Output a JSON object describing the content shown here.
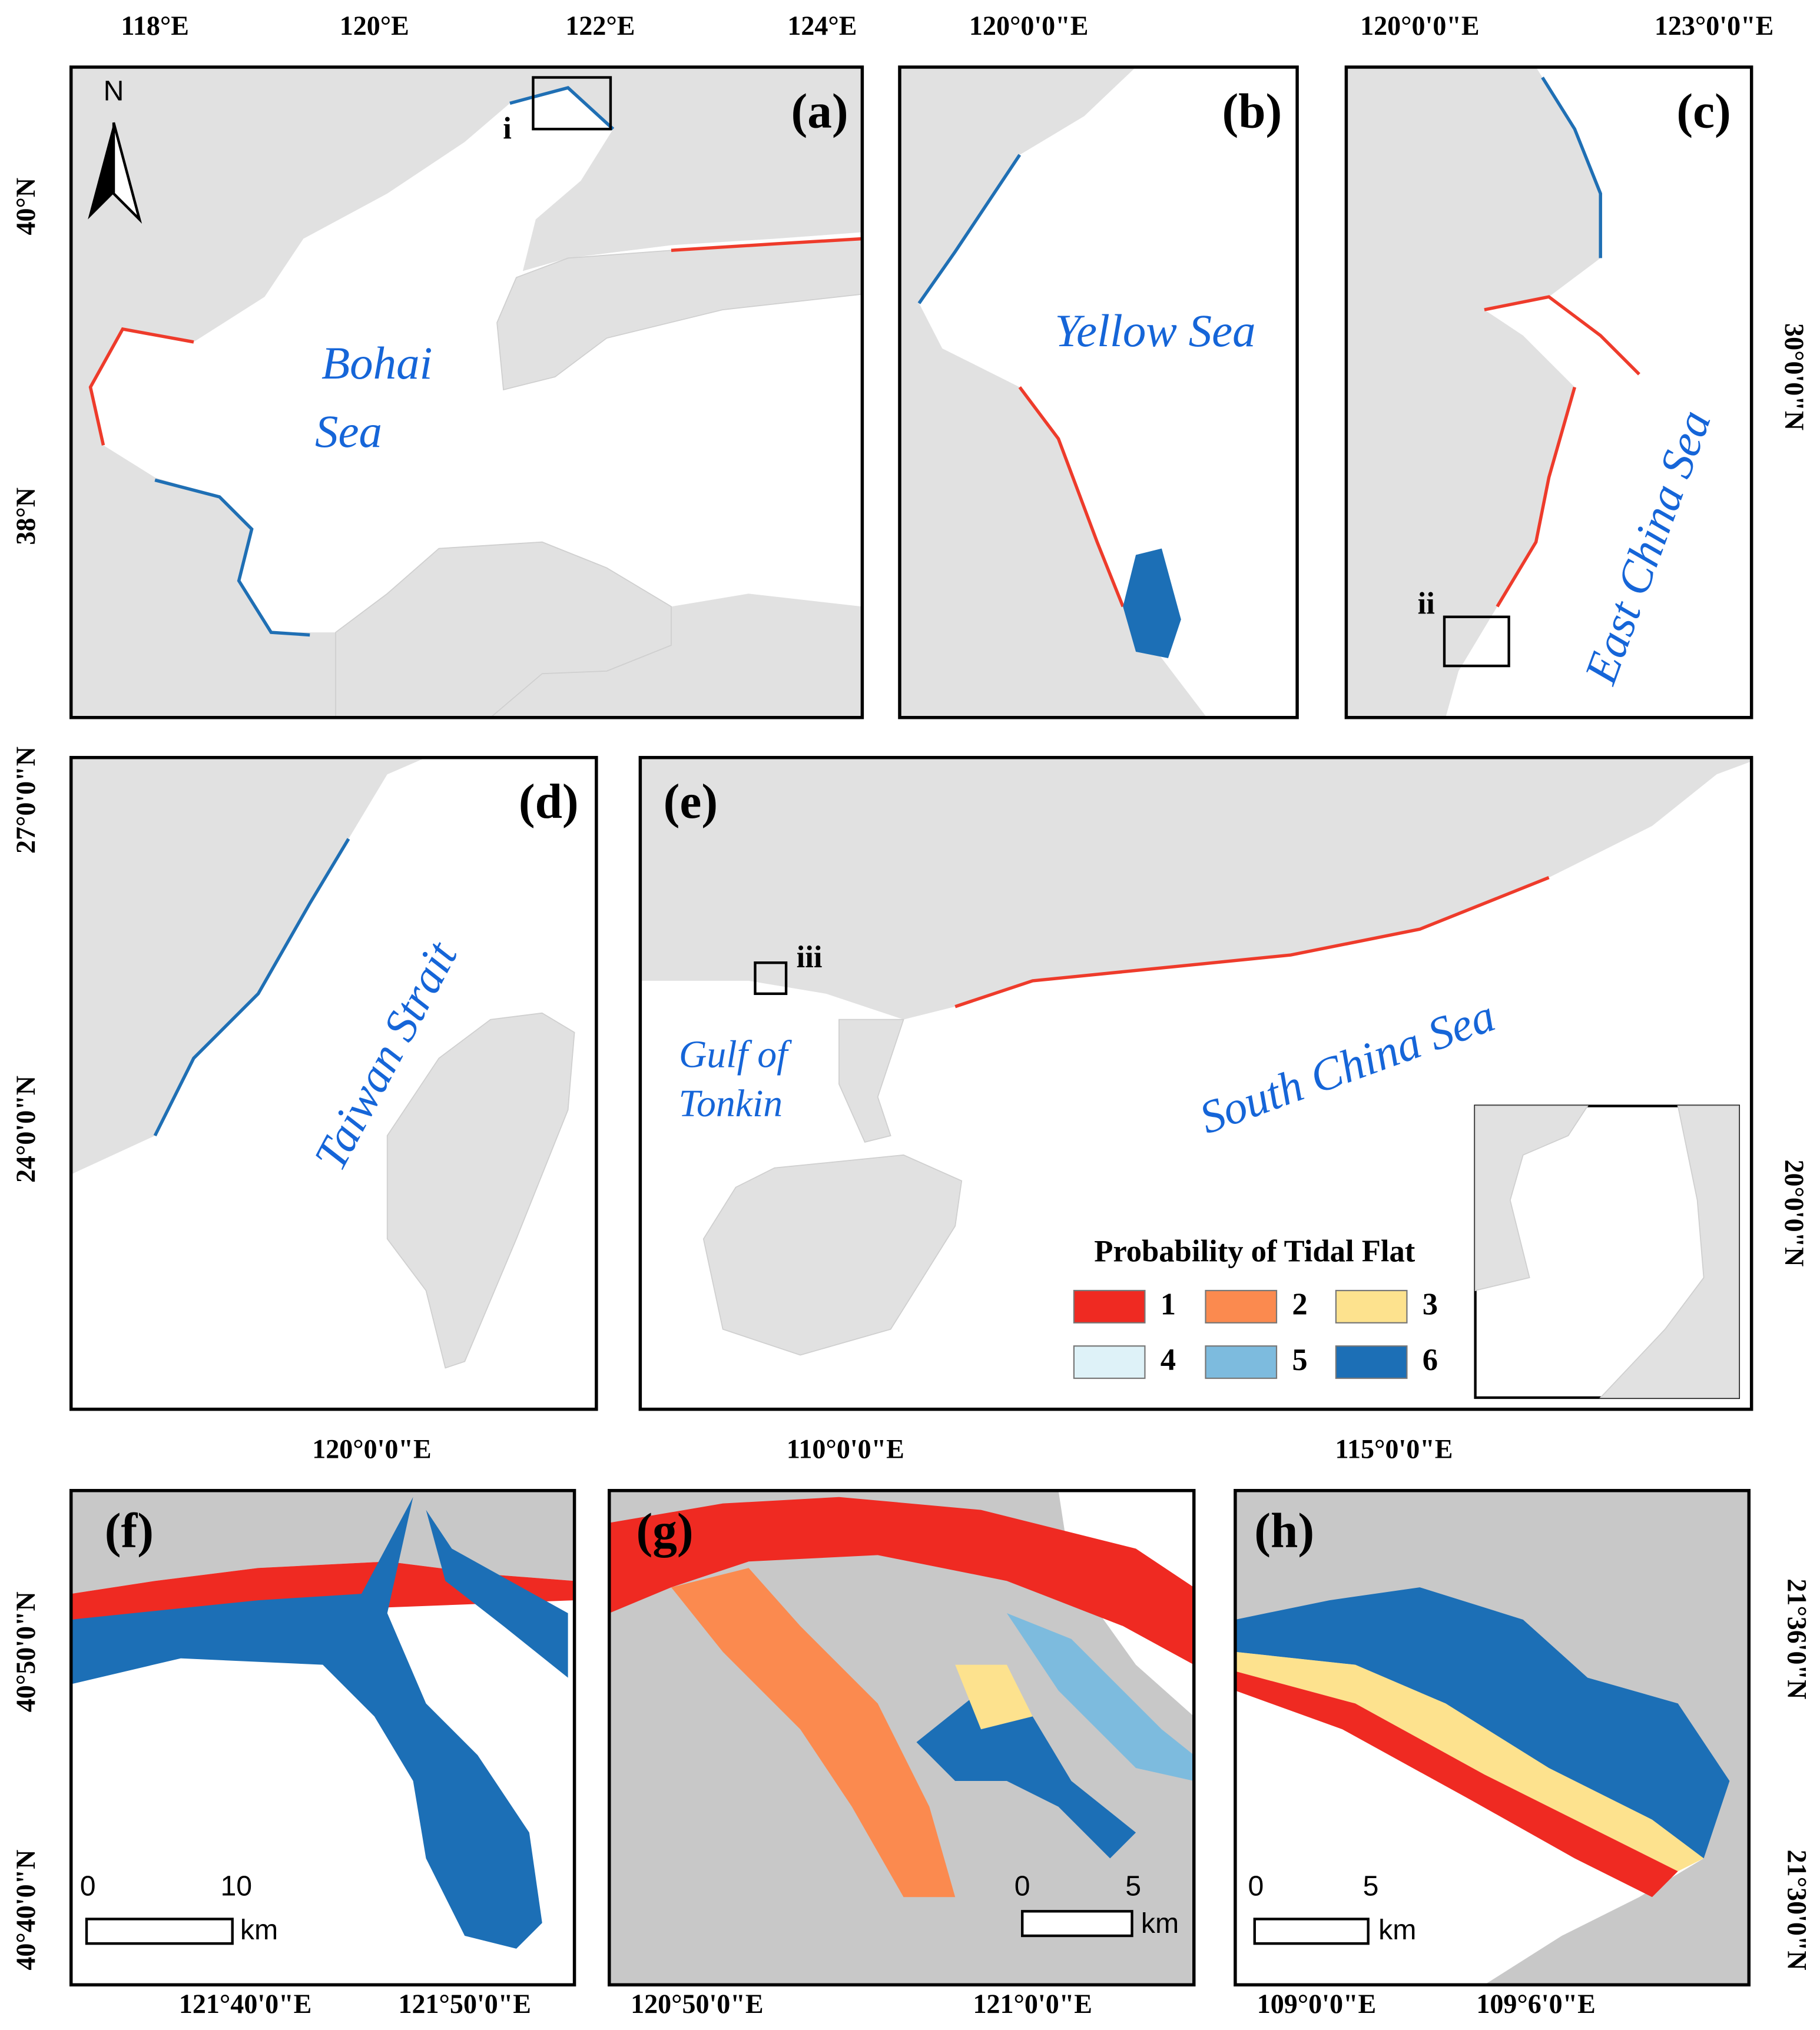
{
  "panels": [
    {
      "label": "(a)",
      "x_ticks": [
        "118°E",
        "120°E",
        "122°E",
        "124°E"
      ],
      "y_ticks": [
        "40°N",
        "38°N"
      ],
      "sea_name": [
        "Bohai",
        "Sea"
      ],
      "box_label": "i",
      "north_arrow": "N"
    },
    {
      "label": "(b)",
      "x_ticks": [
        "120°0'0\"E"
      ],
      "sea_name": [
        "Yellow Sea"
      ]
    },
    {
      "label": "(c)",
      "x_ticks": [
        "120°0'0\"E",
        "123°0'0\"E"
      ],
      "y_ticks": [
        "30°0'0\"N"
      ],
      "sea_name": [
        "East China Sea"
      ],
      "box_label": "ii"
    },
    {
      "label": "(d)",
      "x_ticks": [
        "120°0'0\"E"
      ],
      "y_ticks": [
        "27°0'0\"N",
        "24°0'0\"N"
      ],
      "sea_name": [
        "Taiwan Strait"
      ]
    },
    {
      "label": "(e)",
      "x_ticks": [
        "110°0'0\"E",
        "115°0'0\"E"
      ],
      "y_ticks": [
        "20°0'0\"N"
      ],
      "sea_name": [
        "South China Sea"
      ],
      "gulf_name": [
        "Gulf of",
        "Tonkin"
      ],
      "box_label": "iii"
    },
    {
      "label": "(f)",
      "x_ticks": [
        "121°40'0\"E",
        "121°50'0\"E"
      ],
      "y_ticks": [
        "40°50'0\"N",
        "40°40'0\"N"
      ],
      "scale_bar": [
        "0",
        "10",
        "km"
      ]
    },
    {
      "label": "(g)",
      "x_ticks": [
        "120°50'0\"E",
        "121°0'0\"E"
      ],
      "scale_bar": [
        "0",
        "5",
        "km"
      ]
    },
    {
      "label": "(h)",
      "x_ticks": [
        "109°0'0\"E",
        "109°6'0\"E"
      ],
      "y_ticks": [
        "21°36'0\"N",
        "21°30'0\"N"
      ],
      "scale_bar": [
        "0",
        "5",
        "km"
      ]
    }
  ],
  "legend": {
    "title": "Probability of Tidal Flat",
    "entries": [
      {
        "label": "1",
        "color": "#ef2a22"
      },
      {
        "label": "2",
        "color": "#fb8a4f"
      },
      {
        "label": "3",
        "color": "#fde28e"
      },
      {
        "label": "4",
        "color": "#def2f8"
      },
      {
        "label": "5",
        "color": "#7dbbde"
      },
      {
        "label": "6",
        "color": "#1c6fb6"
      }
    ]
  }
}
